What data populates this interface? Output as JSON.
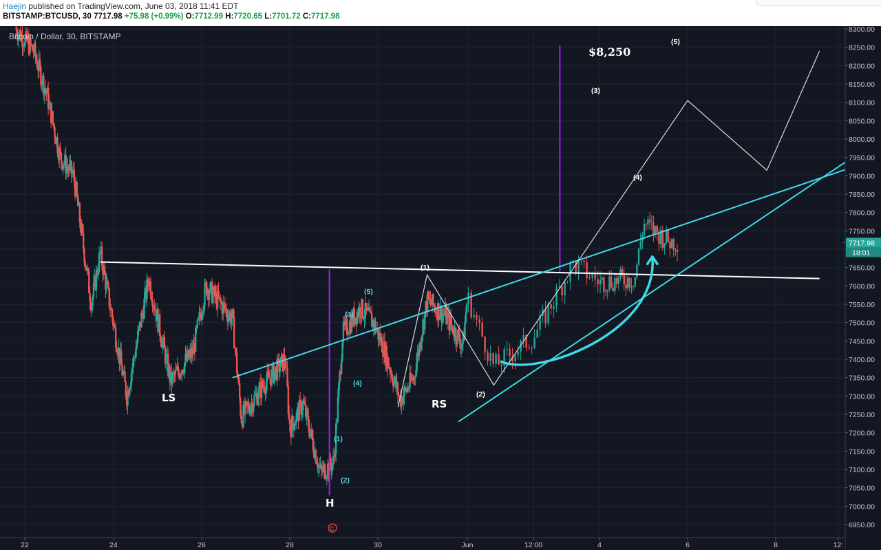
{
  "header": {
    "author": "Haejin",
    "published": "published on TradingView.com, June 03, 2018 11:41 EDT",
    "symbol": "BITSTAMP:BTCUSD, 30",
    "last": "7717.98",
    "change": "+75.98 (+0.99%)",
    "o_label": "O:",
    "o": "7712.99",
    "h_label": "H:",
    "h": "7720.65",
    "l_label": "L:",
    "l": "7701.72",
    "c_label": "C:",
    "c": "7717.98"
  },
  "chart_title": "Bitcoin / Dollar, 30, BITSTAMP",
  "price_tag": {
    "value": "7717.98",
    "timer": "18:01"
  },
  "colors": {
    "up": "#26a69a",
    "down": "#ef5350",
    "trend": "#40d9e8",
    "purple": "#a020f0",
    "white": "#ffffff",
    "bg": "#131722"
  },
  "annotations": {
    "LS": "LS",
    "H": "H",
    "RS": "RS",
    "target": "$8,250",
    "w1": "(1)",
    "w2": "(2)",
    "w3": "(3)",
    "w4": "(4)",
    "w5": "(5)",
    "c1": "(1)",
    "c2": "(2)",
    "c3": "(3)",
    "c4": "(4)",
    "c5": "(5)",
    "wave_c": "C"
  },
  "chart_data": {
    "type": "candlestick",
    "title": "Bitcoin / Dollar, 30, BITSTAMP",
    "x_ticks": [
      "22",
      "24",
      "26",
      "28",
      "30",
      "Jun",
      "12:00",
      "4",
      "6",
      "8",
      "12:"
    ],
    "y_ticks": [
      6950,
      7000,
      7050,
      7100,
      7150,
      7200,
      7250,
      7300,
      7350,
      7400,
      7450,
      7500,
      7550,
      7600,
      7650,
      7700,
      7750,
      7800,
      7850,
      7900,
      7950,
      8000,
      8050,
      8100,
      8150,
      8200,
      8250,
      8300
    ],
    "ylim": [
      6935,
      8310
    ],
    "price_path": [
      {
        "d": 21.8,
        "p": 8300
      },
      {
        "d": 22.2,
        "p": 8240
      },
      {
        "d": 22.5,
        "p": 8120
      },
      {
        "d": 22.8,
        "p": 7950
      },
      {
        "d": 23.1,
        "p": 7900
      },
      {
        "d": 23.5,
        "p": 7550
      },
      {
        "d": 23.7,
        "p": 7690
      },
      {
        "d": 24.3,
        "p": 7300
      },
      {
        "d": 24.8,
        "p": 7620
      },
      {
        "d": 25.3,
        "p": 7340
      },
      {
        "d": 25.8,
        "p": 7420
      },
      {
        "d": 26.1,
        "p": 7600
      },
      {
        "d": 26.7,
        "p": 7510
      },
      {
        "d": 26.9,
        "p": 7240
      },
      {
        "d": 27.4,
        "p": 7330
      },
      {
        "d": 27.9,
        "p": 7400
      },
      {
        "d": 28.0,
        "p": 7210
      },
      {
        "d": 28.3,
        "p": 7280
      },
      {
        "d": 28.7,
        "p": 7090
      },
      {
        "d": 29.0,
        "p": 7120
      },
      {
        "d": 29.2,
        "p": 7470
      },
      {
        "d": 29.6,
        "p": 7540
      },
      {
        "d": 29.9,
        "p": 7500
      },
      {
        "d": 30.1,
        "p": 7440
      },
      {
        "d": 30.5,
        "p": 7290
      },
      {
        "d": 30.8,
        "p": 7350
      },
      {
        "d": 31.1,
        "p": 7560
      },
      {
        "d": 31.5,
        "p": 7520
      },
      {
        "d": 31.9,
        "p": 7440
      },
      {
        "d": 32.0,
        "p": 7570
      },
      {
        "d": 32.2,
        "p": 7380
      },
      {
        "d": 32.5,
        "p": 7460
      },
      {
        "d": 32.8,
        "p": 7660
      },
      {
        "d": 33.0,
        "p": 7610
      },
      {
        "d": 33.4,
        "p": 7620
      },
      {
        "d": 33.5,
        "p": 7770
      },
      {
        "d": 33.8,
        "p": 7720
      }
    ],
    "candle_range": {
      "start_day": 21.8,
      "end_day": 33.9
    },
    "last_close": 7717.98,
    "trendlines": [
      {
        "name": "neckline",
        "color": "white",
        "from": {
          "d": 23.7,
          "p": 7665
        },
        "to": {
          "d": 35.7,
          "p": 7620
        }
      },
      {
        "name": "upper-channel",
        "color": "cyan",
        "from": {
          "d": 26.7,
          "p": 7350
        },
        "to": {
          "d": 36.6,
          "p": 7945
        }
      },
      {
        "name": "lower-trend",
        "color": "cyan",
        "from": {
          "d": 31.8,
          "p": 7230
        },
        "to": {
          "d": 36.4,
          "p": 7970
        }
      }
    ],
    "projection": [
      {
        "d": 30.45,
        "p": 7270
      },
      {
        "d": 31.1,
        "p": 7630
      },
      {
        "d": 32.2,
        "p": 7330
      },
      {
        "d": 34.0,
        "p": 8105
      },
      {
        "d": 34.9,
        "p": 7915
      },
      {
        "d": 35.7,
        "p": 8240
      }
    ],
    "vertical_markers": [
      {
        "d": 28.9,
        "from": 7030,
        "to": 7645
      },
      {
        "d": 32.7,
        "from": 7635,
        "to": 8255
      }
    ]
  }
}
